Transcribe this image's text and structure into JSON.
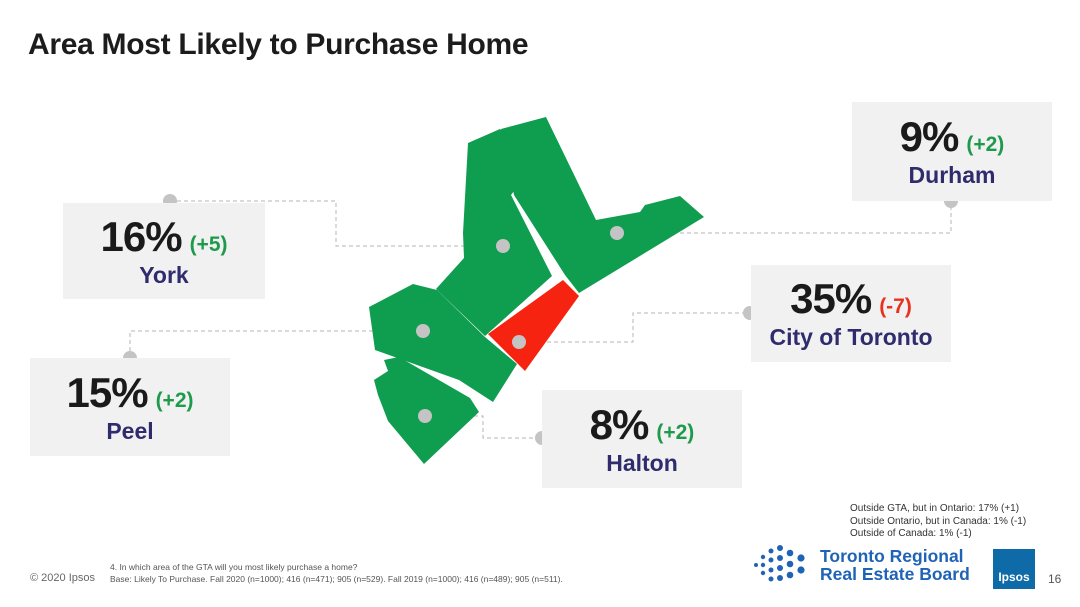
{
  "title": "Area Most Likely to Purchase Home",
  "colors": {
    "map_green": "#0f9d50",
    "map_red": "#f5230f",
    "increase": "#1e9a4c",
    "decrease": "#e8321f",
    "region_label": "#2f2c6e"
  },
  "regions": [
    {
      "name": "York",
      "pct": "16%",
      "change": "(+5)",
      "direction": "up"
    },
    {
      "name": "Durham",
      "pct": "9%",
      "change": "(+2)",
      "direction": "up"
    },
    {
      "name": "City of Toronto",
      "pct": "35%",
      "change": "(-7)",
      "direction": "down"
    },
    {
      "name": "Peel",
      "pct": "15%",
      "change": "(+2)",
      "direction": "up"
    },
    {
      "name": "Halton",
      "pct": "8%",
      "change": "(+2)",
      "direction": "up"
    }
  ],
  "outside_notes": [
    "Outside GTA, but in Ontario: 17% (+1)",
    "Outside Ontario, but in Canada: 1% (-1)",
    "Outside of Canada: 1% (-1)"
  ],
  "footer": {
    "copyright": "© 2020 Ipsos",
    "question": "4. In which area of the GTA will you most likely purchase a home?",
    "base": "Base: Likely To Purchase. Fall 2020 (n=1000); 416 (n=471); 905 (n=529). Fall 2019 (n=1000); 416 (n=489); 905 (n=511).",
    "trreb_line1": "Toronto Regional",
    "trreb_line2": "Real Estate Board",
    "ipsos_logo": "Ipsos",
    "page_number": "16"
  }
}
